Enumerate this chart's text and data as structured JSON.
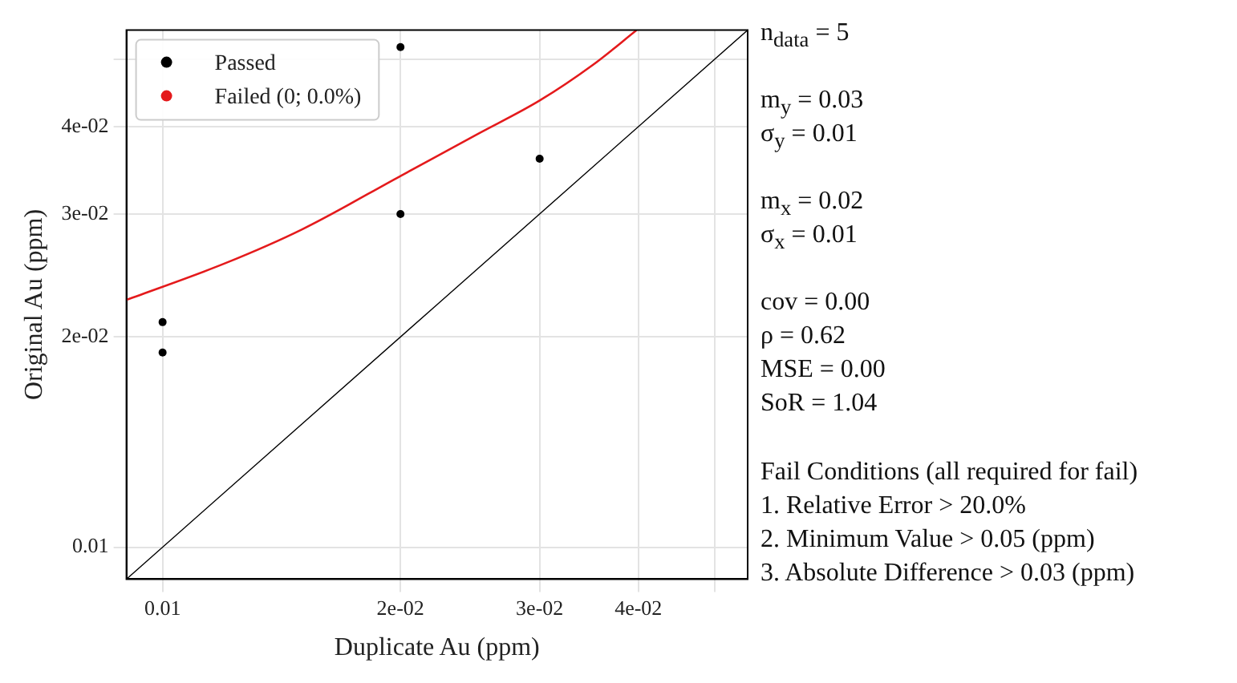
{
  "chart_data": {
    "type": "scatter",
    "xlabel": "Duplicate Au (ppm)",
    "ylabel": "Original Au (ppm)",
    "log": "xy",
    "grid": true,
    "legend": "top left",
    "marker": "circle",
    "line_style": "solid",
    "xlim": [
      0.009,
      0.055
    ],
    "ylim": [
      0.009,
      0.055
    ],
    "xticks": [
      0.01,
      {
        "value": 0.02,
        "label": "2e-02"
      },
      {
        "value": 0.03,
        "label": "3e-02"
      },
      {
        "value": 0.04,
        "label": "4e-02"
      },
      {
        "value": 0.05,
        "label": null
      }
    ],
    "yticks": [
      0.01,
      {
        "value": 0.02,
        "label": "2e-02"
      },
      {
        "value": 0.03,
        "label": "3e-02"
      },
      {
        "value": 0.04,
        "label": "4e-02"
      },
      {
        "value": 0.05,
        "label": null
      }
    ],
    "series": [
      {
        "name": "Passed",
        "color": "#000000",
        "x": [
          0.01,
          0.01,
          0.02,
          0.02,
          0.03
        ],
        "values": [
          0.021,
          0.019,
          0.052,
          0.03,
          0.036
        ]
      },
      {
        "name": "Failed (0; 0.0%)",
        "color": "#e41a1c"
      },
      {
        "type": "line",
        "marker": "none",
        "color": "#e41a1c",
        "x": [
          0.009,
          0.012,
          0.015,
          0.02,
          0.025,
          0.03,
          0.035,
          0.0398
        ],
        "values": [
          0.0226,
          0.0255,
          0.0285,
          0.034,
          0.039,
          0.0436,
          0.049,
          0.055
        ]
      },
      {
        "type": "line",
        "marker": "none",
        "color": "#000000",
        "x": [
          0.009,
          0.055
        ],
        "values": [
          0.009,
          0.055
        ]
      }
    ],
    "annotations": [
      "n$_{data}$ = 5",
      "m$_{y}$ = 0.03",
      "σ$_{y}$ = 0.01",
      "m$_{x}$ = 0.02",
      "σ$_{x}$ = 0.01",
      "cov = 0.00",
      "ρ = 0.62",
      "MSE = 0.00",
      "SoR = 1.04",
      "Fail Conditions (all required for fail)",
      "1. Relative Error > 20.0%",
      "2. Minimum Value > 0.05 (ppm)",
      "3. Absolute Difference > 0.03 (ppm)"
    ]
  }
}
